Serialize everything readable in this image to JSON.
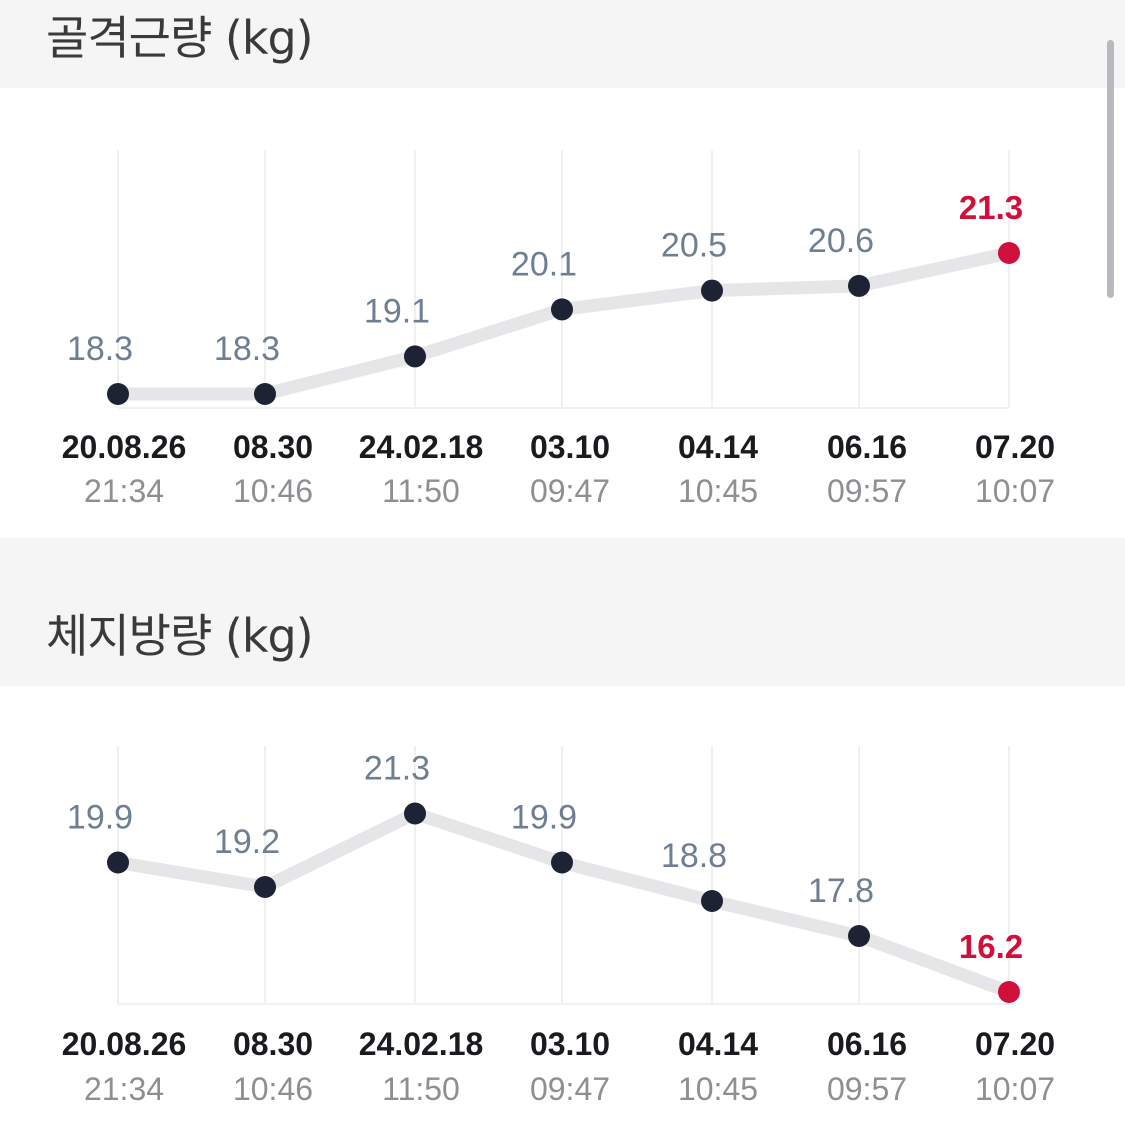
{
  "sections": [
    {
      "title": "골격근량 (kg)",
      "chart_data": {
        "type": "line",
        "title": "골격근량 (kg)",
        "categories": [
          {
            "date": "20.08.26",
            "time": "21:34"
          },
          {
            "date": "08.30",
            "time": "10:46"
          },
          {
            "date": "24.02.18",
            "time": "11:50"
          },
          {
            "date": "03.10",
            "time": "09:47"
          },
          {
            "date": "04.14",
            "time": "10:45"
          },
          {
            "date": "06.16",
            "time": "09:57"
          },
          {
            "date": "07.20",
            "time": "10:07"
          }
        ],
        "values": [
          18.3,
          18.3,
          19.1,
          20.1,
          20.5,
          20.6,
          21.3
        ],
        "value_labels": [
          "18.3",
          "18.3",
          "19.1",
          "20.1",
          "20.5",
          "20.6",
          "21.3"
        ],
        "highlight_last": true,
        "grid": "vertical",
        "colors": {
          "line": "#e6e6e8",
          "point": "#1e2235",
          "highlight": "#d0103a",
          "value_label": "#6f7f93"
        }
      }
    },
    {
      "title": "체지방량 (kg)",
      "chart_data": {
        "type": "line",
        "title": "체지방량 (kg)",
        "categories": [
          {
            "date": "20.08.26",
            "time": "21:34"
          },
          {
            "date": "08.30",
            "time": "10:46"
          },
          {
            "date": "24.02.18",
            "time": "11:50"
          },
          {
            "date": "03.10",
            "time": "09:47"
          },
          {
            "date": "04.14",
            "time": "10:45"
          },
          {
            "date": "06.16",
            "time": "09:57"
          },
          {
            "date": "07.20",
            "time": "10:07"
          }
        ],
        "values": [
          19.9,
          19.2,
          21.3,
          19.9,
          18.8,
          17.8,
          16.2
        ],
        "value_labels": [
          "19.9",
          "19.2",
          "21.3",
          "19.9",
          "18.8",
          "17.8",
          "16.2"
        ],
        "highlight_last": true,
        "grid": "vertical",
        "colors": {
          "line": "#e6e6e8",
          "point": "#1e2235",
          "highlight": "#d0103a",
          "value_label": "#6f7f93"
        }
      }
    }
  ]
}
